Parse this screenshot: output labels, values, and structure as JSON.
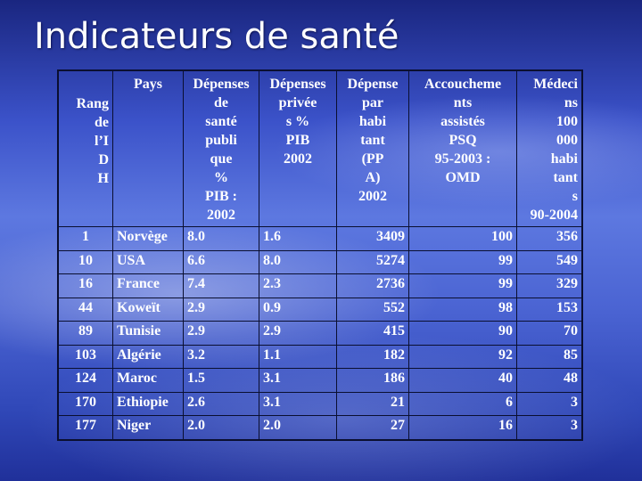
{
  "title": "Indicateurs de santé",
  "header": {
    "rang": [
      "Rang",
      "de",
      "l’I",
      "D",
      "H"
    ],
    "pays": [
      "Pays"
    ],
    "depenses_sante": [
      "Dépenses",
      "de",
      "santé",
      "publi",
      "que",
      "%",
      "PIB :",
      "2002"
    ],
    "depenses_privee": [
      "Dépenses",
      "privée",
      "s %",
      "PIB",
      "2002"
    ],
    "depense_par_habitant": [
      "Dépense",
      "par",
      "habi",
      "tant",
      "(PP",
      "A)",
      "2002"
    ],
    "accouchements": [
      "Accoucheme",
      "nts",
      "assistés",
      "PSQ",
      "95-2003 :",
      "OMD"
    ],
    "medecins": [
      "Médeci",
      "ns",
      "100",
      "000",
      "habi",
      "tant",
      "s",
      "90-2004"
    ]
  },
  "rows": [
    {
      "rang": "1",
      "pays": "Norvège",
      "dep": "8.0",
      "priv": "1.6",
      "par": "3409",
      "acc": "100",
      "med": "356"
    },
    {
      "rang": "10",
      "pays": "USA",
      "dep": "6.6",
      "priv": "8.0",
      "par": "5274",
      "acc": "99",
      "med": "549"
    },
    {
      "rang": "16",
      "pays": "France",
      "dep": "7.4",
      "priv": "2.3",
      "par": "2736",
      "acc": "99",
      "med": "329"
    },
    {
      "rang": "44",
      "pays": "Koweït",
      "dep": "2.9",
      "priv": "0.9",
      "par": "552",
      "acc": "98",
      "med": "153"
    },
    {
      "rang": "89",
      "pays": "Tunisie",
      "dep": "2.9",
      "priv": "2.9",
      "par": "415",
      "acc": "90",
      "med": "70"
    },
    {
      "rang": "103",
      "pays": "Algérie",
      "dep": "3.2",
      "priv": "1.1",
      "par": "182",
      "acc": "92",
      "med": "85"
    },
    {
      "rang": "124",
      "pays": "Maroc",
      "dep": "1.5",
      "priv": "3.1",
      "par": "186",
      "acc": "40",
      "med": "48"
    },
    {
      "rang": "170",
      "pays": "Ethiopie",
      "dep": "2.6",
      "priv": "3.1",
      "par": "21",
      "acc": "6",
      "med": "3"
    },
    {
      "rang": "177",
      "pays": "Niger",
      "dep": "2.0",
      "priv": "2.0",
      "par": "27",
      "acc": "16",
      "med": "3"
    }
  ]
}
